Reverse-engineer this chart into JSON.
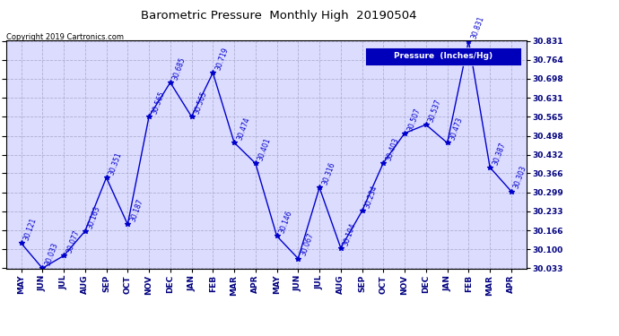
{
  "title": "Barometric Pressure  Monthly High  20190504",
  "copyright": "Copyright 2019 Cartronics.com",
  "legend_label": "Pressure  (Inches/Hg)",
  "months": [
    "MAY",
    "JUN",
    "JUL",
    "AUG",
    "SEP",
    "OCT",
    "NOV",
    "DEC",
    "JAN",
    "FEB",
    "MAR",
    "APR",
    "MAY",
    "JUN",
    "JUL",
    "AUG",
    "SEP",
    "OCT",
    "NOV",
    "DEC",
    "JAN",
    "FEB",
    "MAR",
    "APR"
  ],
  "values": [
    30.121,
    30.033,
    30.077,
    30.163,
    30.351,
    30.187,
    30.565,
    30.685,
    30.565,
    30.719,
    30.474,
    30.401,
    30.146,
    30.067,
    30.316,
    30.104,
    30.234,
    30.403,
    30.507,
    30.537,
    30.473,
    30.831,
    30.387,
    30.303
  ],
  "line_color": "#0000CC",
  "marker": "*",
  "bg_color": "#FFFFFF",
  "plot_bg_color": "#DCDCFF",
  "grid_color": "#AAAACC",
  "title_color": "#000000",
  "copyright_color": "#000000",
  "legend_bg_color": "#0000BB",
  "legend_text_color": "#FFFFFF",
  "y_min": 30.033,
  "y_max": 30.831,
  "y_ticks": [
    30.033,
    30.1,
    30.166,
    30.233,
    30.299,
    30.366,
    30.432,
    30.498,
    30.565,
    30.631,
    30.698,
    30.764,
    30.831
  ]
}
